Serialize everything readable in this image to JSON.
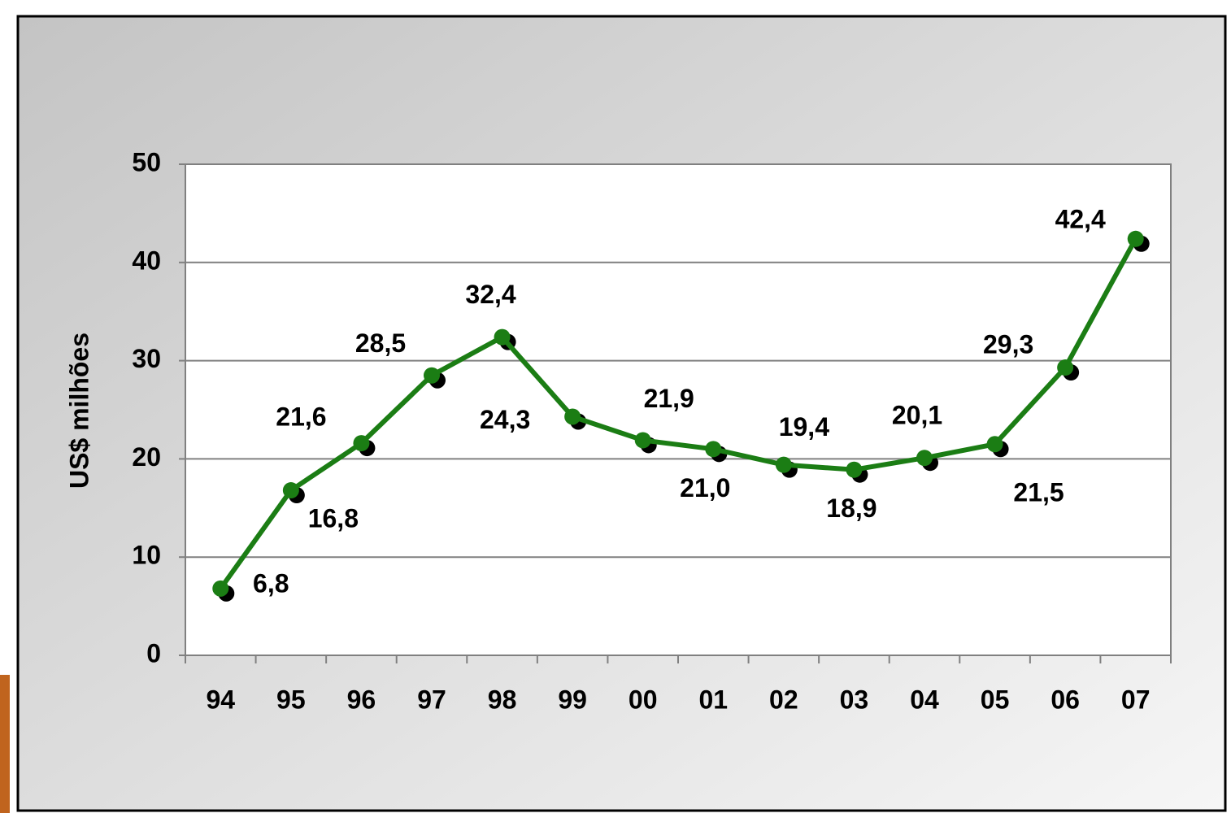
{
  "chart_data": {
    "type": "line",
    "y_label": "US$ milhões",
    "categories": [
      "94",
      "95",
      "96",
      "97",
      "98",
      "99",
      "00",
      "01",
      "02",
      "03",
      "04",
      "05",
      "06",
      "07"
    ],
    "values": [
      6.8,
      16.8,
      21.6,
      28.5,
      32.4,
      24.3,
      21.9,
      21.0,
      19.4,
      18.9,
      20.1,
      21.5,
      29.3,
      42.4
    ],
    "value_labels": [
      "6,8",
      "16,8",
      "21,6",
      "28,5",
      "32,4",
      "24,3",
      "21,9",
      "21,0",
      "19,4",
      "18,9",
      "20,1",
      "21,5",
      "29,3",
      "42,4"
    ],
    "color": "#1b7d14",
    "ylim": [
      0,
      50
    ],
    "yticks": [
      0,
      10,
      20,
      30,
      40,
      50
    ],
    "grid": true
  }
}
